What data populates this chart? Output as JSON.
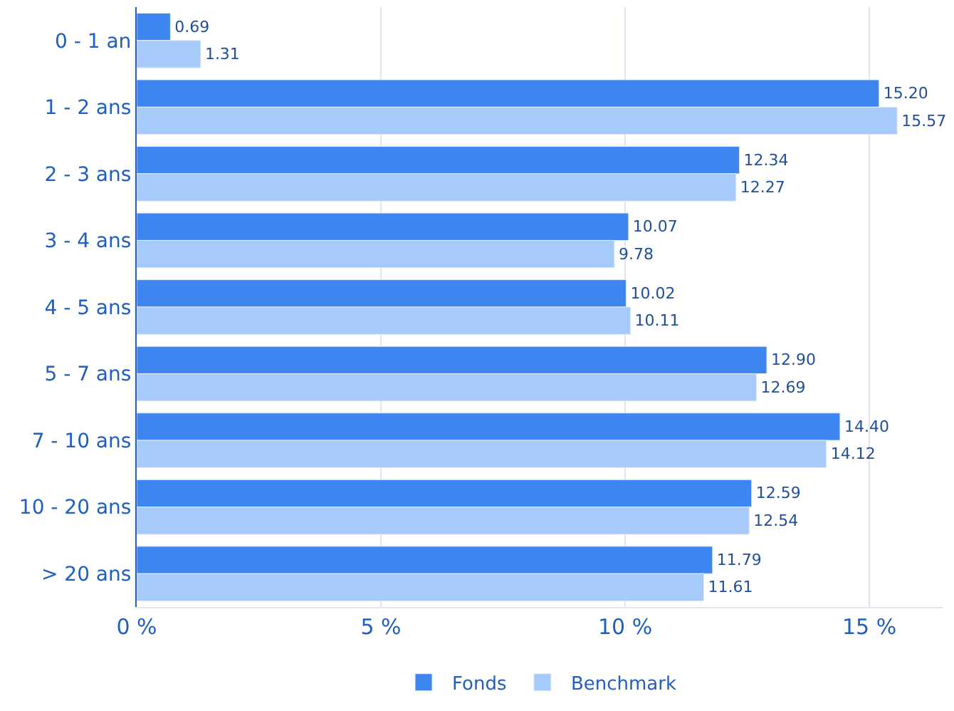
{
  "chart_data": {
    "type": "bar",
    "orientation": "horizontal",
    "categories": [
      "0 - 1 an",
      "1 - 2 ans",
      "2 - 3 ans",
      "3 - 4 ans",
      "4 - 5 ans",
      "5 - 7 ans",
      "7 - 10 ans",
      "10 - 20 ans",
      "> 20 ans"
    ],
    "series": [
      {
        "name": "Fonds",
        "color": "#3d85f0",
        "values": [
          0.69,
          15.2,
          12.34,
          10.07,
          10.02,
          12.9,
          14.4,
          12.59,
          11.79
        ],
        "value_labels": [
          "0.69",
          "15.20",
          "12.34",
          "10.07",
          "10.02",
          "12.90",
          "14.40",
          "12.59",
          "11.79"
        ]
      },
      {
        "name": "Benchmark",
        "color": "#a6cbfa",
        "values": [
          1.31,
          15.57,
          12.27,
          9.78,
          10.11,
          12.69,
          14.12,
          12.54,
          11.61
        ],
        "value_labels": [
          "1.31",
          "15.57",
          "12.27",
          "9.78",
          "10.11",
          "12.69",
          "14.12",
          "12.54",
          "11.61"
        ]
      }
    ],
    "xlim": [
      0,
      16.5
    ],
    "xticks": [
      {
        "value": 0,
        "label": "0 %"
      },
      {
        "value": 5,
        "label": "5 %"
      },
      {
        "value": 10,
        "label": "10 %"
      },
      {
        "value": 15,
        "label": "15 %"
      }
    ],
    "grid": "x",
    "legend": "bottom"
  }
}
